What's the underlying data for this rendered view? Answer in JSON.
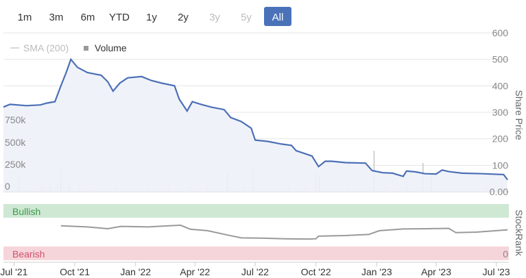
{
  "range_buttons": [
    {
      "label": "1m",
      "state": "normal"
    },
    {
      "label": "3m",
      "state": "normal"
    },
    {
      "label": "6m",
      "state": "normal"
    },
    {
      "label": "YTD",
      "state": "normal"
    },
    {
      "label": "1y",
      "state": "normal"
    },
    {
      "label": "2y",
      "state": "normal"
    },
    {
      "label": "3y",
      "state": "disabled"
    },
    {
      "label": "5y",
      "state": "disabled"
    },
    {
      "label": "All",
      "state": "active"
    }
  ],
  "legend": {
    "sma_label": "SMA (200)",
    "volume_label": "Volume"
  },
  "colors": {
    "price_line": "#4a6fb5",
    "price_fill": "#eef1f8",
    "volume_bar": "#c8c8c8",
    "stockrank_line": "#999999",
    "bullish_band": "#cfe8d4",
    "bearish_band": "#f6d5da",
    "active_button": "#4a72b8"
  },
  "chart_data": [
    {
      "type": "line",
      "name": "share-price",
      "y_axis_title": "Share Price",
      "y_ticks": [
        "600",
        "500",
        "400",
        "300",
        "200",
        "100",
        "0.00"
      ],
      "ylim": [
        0,
        600
      ],
      "x_tick_labels": [
        "Jul '21",
        "Oct '21",
        "Jan '22",
        "Apr '22",
        "Jul '22",
        "Oct '22",
        "Jan '23",
        "Apr '23",
        "Jul '23"
      ],
      "x_tick_dates": [
        "2021-07-01",
        "2021-10-01",
        "2022-01-01",
        "2022-04-01",
        "2022-07-01",
        "2022-10-01",
        "2023-01-01",
        "2023-04-01",
        "2023-07-01"
      ],
      "xlim": [
        "2021-06-15",
        "2023-07-20"
      ],
      "points": [
        [
          "2021-06-15",
          320
        ],
        [
          "2021-06-25",
          330
        ],
        [
          "2021-07-20",
          325
        ],
        [
          "2021-08-10",
          328
        ],
        [
          "2021-08-20",
          335
        ],
        [
          "2021-09-01",
          340
        ],
        [
          "2021-09-10",
          400
        ],
        [
          "2021-09-18",
          450
        ],
        [
          "2021-09-25",
          500
        ],
        [
          "2021-10-05",
          470
        ],
        [
          "2021-10-20",
          450
        ],
        [
          "2021-11-10",
          440
        ],
        [
          "2021-11-20",
          415
        ],
        [
          "2021-11-28",
          380
        ],
        [
          "2021-12-08",
          410
        ],
        [
          "2021-12-20",
          430
        ],
        [
          "2022-01-10",
          435
        ],
        [
          "2022-01-25",
          420
        ],
        [
          "2022-02-10",
          410
        ],
        [
          "2022-03-01",
          400
        ],
        [
          "2022-03-08",
          350
        ],
        [
          "2022-03-20",
          305
        ],
        [
          "2022-03-28",
          340
        ],
        [
          "2022-04-10",
          330
        ],
        [
          "2022-04-25",
          320
        ],
        [
          "2022-05-15",
          310
        ],
        [
          "2022-05-25",
          280
        ],
        [
          "2022-06-10",
          265
        ],
        [
          "2022-06-25",
          240
        ],
        [
          "2022-07-01",
          195
        ],
        [
          "2022-07-20",
          190
        ],
        [
          "2022-08-10",
          180
        ],
        [
          "2022-08-25",
          175
        ],
        [
          "2022-09-01",
          155
        ],
        [
          "2022-09-25",
          135
        ],
        [
          "2022-10-05",
          95
        ],
        [
          "2022-10-15",
          115
        ],
        [
          "2022-10-25",
          115
        ],
        [
          "2022-11-15",
          110
        ],
        [
          "2022-12-15",
          108
        ],
        [
          "2022-12-25",
          80
        ],
        [
          "2023-01-10",
          72
        ],
        [
          "2023-01-25",
          70
        ],
        [
          "2023-02-10",
          58
        ],
        [
          "2023-02-15",
          78
        ],
        [
          "2023-03-01",
          75
        ],
        [
          "2023-03-15",
          68
        ],
        [
          "2023-04-01",
          67
        ],
        [
          "2023-04-10",
          82
        ],
        [
          "2023-04-20",
          76
        ],
        [
          "2023-05-10",
          70
        ],
        [
          "2023-06-10",
          68
        ],
        [
          "2023-07-12",
          65
        ],
        [
          "2023-07-18",
          45
        ]
      ]
    },
    {
      "type": "bar",
      "name": "volume",
      "y_ticks": [
        "750k",
        "500k",
        "250k",
        "0"
      ],
      "ylim": [
        0,
        1000000
      ],
      "points": [
        [
          "2021-06-20",
          40000
        ],
        [
          "2021-07-08",
          180000
        ],
        [
          "2021-07-25",
          30000
        ],
        [
          "2021-08-12",
          60000
        ],
        [
          "2021-08-25",
          70000
        ],
        [
          "2021-09-05",
          90000
        ],
        [
          "2021-09-10",
          300000
        ],
        [
          "2021-09-22",
          120000
        ],
        [
          "2021-10-08",
          40000
        ],
        [
          "2021-11-01",
          30000
        ],
        [
          "2021-12-01",
          50000
        ],
        [
          "2022-01-20",
          35000
        ],
        [
          "2022-02-20",
          40000
        ],
        [
          "2022-03-25",
          60000
        ],
        [
          "2022-04-20",
          50000
        ],
        [
          "2022-05-20",
          220000
        ],
        [
          "2022-06-15",
          60000
        ],
        [
          "2022-06-28",
          300000
        ],
        [
          "2022-07-10",
          40000
        ],
        [
          "2022-08-20",
          45000
        ],
        [
          "2022-09-15",
          50000
        ],
        [
          "2022-10-01",
          250000
        ],
        [
          "2022-10-06",
          180000
        ],
        [
          "2022-11-20",
          40000
        ],
        [
          "2022-12-28",
          500000
        ],
        [
          "2023-01-15",
          60000
        ],
        [
          "2023-02-15",
          120000
        ],
        [
          "2023-03-12",
          350000
        ],
        [
          "2023-03-25",
          200000
        ],
        [
          "2023-05-01",
          40000
        ],
        [
          "2023-06-15",
          50000
        ],
        [
          "2023-07-10",
          150000
        ]
      ]
    },
    {
      "type": "line",
      "name": "stockrank",
      "y_axis_title": "StockRank",
      "y_ticks": [
        "0"
      ],
      "band_labels": {
        "bullish": "Bullish",
        "bearish": "Bearish"
      },
      "ylim": [
        0,
        100
      ],
      "points": [
        [
          "2021-09-10",
          72
        ],
        [
          "2021-10-20",
          68
        ],
        [
          "2021-11-20",
          62
        ],
        [
          "2021-12-10",
          70
        ],
        [
          "2022-01-20",
          68
        ],
        [
          "2022-02-20",
          72
        ],
        [
          "2022-03-10",
          74
        ],
        [
          "2022-03-25",
          60
        ],
        [
          "2022-04-20",
          55
        ],
        [
          "2022-05-20",
          40
        ],
        [
          "2022-06-10",
          30
        ],
        [
          "2022-07-10",
          29
        ],
        [
          "2022-08-15",
          27
        ],
        [
          "2022-09-20",
          26
        ],
        [
          "2022-10-01",
          27
        ],
        [
          "2022-10-05",
          36
        ],
        [
          "2022-11-15",
          38
        ],
        [
          "2022-12-20",
          42
        ],
        [
          "2023-01-05",
          55
        ],
        [
          "2023-02-10",
          61
        ],
        [
          "2023-03-20",
          62
        ],
        [
          "2023-04-20",
          63
        ],
        [
          "2023-05-01",
          48
        ],
        [
          "2023-06-01",
          50
        ],
        [
          "2023-07-18",
          58
        ]
      ]
    }
  ]
}
